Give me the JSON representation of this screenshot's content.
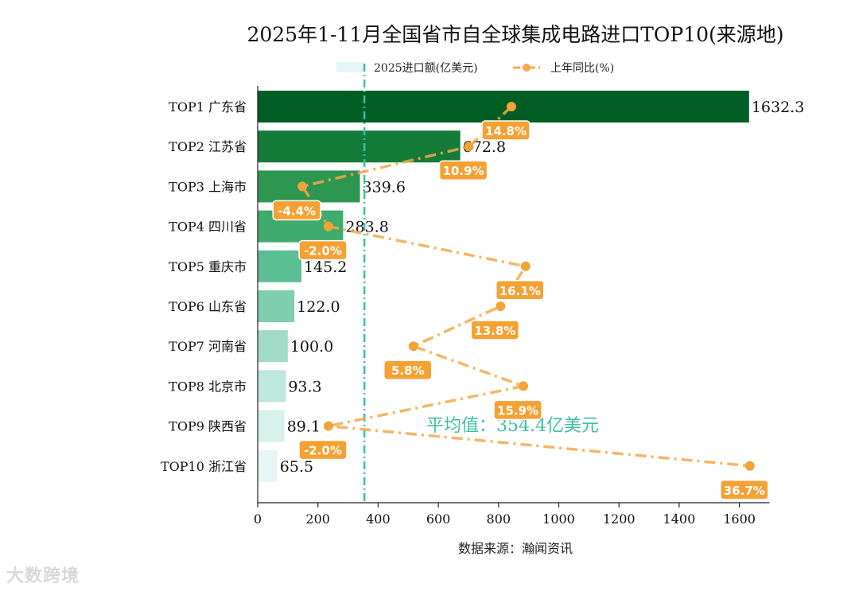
{
  "chart_data": {
    "type": "bar",
    "orientation": "horizontal",
    "title": "2025年1-11月全国省市自全球集成电路进口TOP10(来源地)",
    "categories": [
      "TOP1 广东省",
      "TOP2 江苏省",
      "TOP3 上海市",
      "TOP4 四川省",
      "TOP5 重庆市",
      "TOP6 山东省",
      "TOP7 河南省",
      "TOP8 北京市",
      "TOP9 陕西省",
      "TOP10 浙江省"
    ],
    "series": [
      {
        "name": "2025进口额(亿美元)",
        "type": "bar",
        "values": [
          1632.3,
          672.8,
          339.6,
          283.8,
          145.2,
          122.0,
          100.0,
          93.3,
          89.1,
          65.5
        ],
        "value_labels": [
          "1632.3",
          "672.8",
          "339.6",
          "283.8",
          "145.2",
          "122.0",
          "100.0",
          "93.3",
          "89.1",
          "65.5"
        ],
        "colors": [
          "#005e24",
          "#147b38",
          "#2d9650",
          "#3fab6c",
          "#5cbf93",
          "#7dcfb0",
          "#a2dcc9",
          "#bfe7db",
          "#d6f0ea",
          "#e6f6f6"
        ]
      },
      {
        "name": "上年同比(%)",
        "type": "line",
        "style": "dash-dot",
        "color": "#f5a94a",
        "values": [
          14.8,
          10.9,
          -4.4,
          -2.0,
          16.1,
          13.8,
          5.8,
          15.9,
          -2.0,
          36.7
        ],
        "labels": [
          "14.8%",
          "10.9%",
          "-4.4%",
          "-2.0%",
          "16.1%",
          "13.8%",
          "5.8%",
          "15.9%",
          "-2.0%",
          "36.7%"
        ]
      }
    ],
    "line_axis_range": [
      -8.5,
      38.5
    ],
    "average": {
      "value": 354.4,
      "label": "平均值：354.4亿美元",
      "color": "#3dbfa3"
    },
    "xlim": [
      0,
      1700
    ],
    "xticks": [
      0,
      200,
      400,
      600,
      800,
      1000,
      1200,
      1400,
      1600
    ],
    "xlabel": "数据来源：瀚闻资讯",
    "legend_position": "top-center"
  },
  "watermark": "大数跨境"
}
